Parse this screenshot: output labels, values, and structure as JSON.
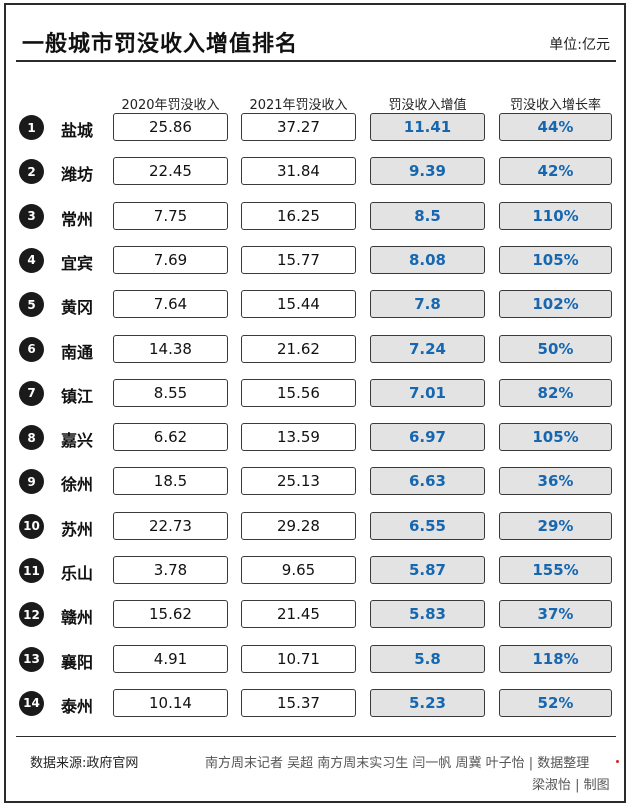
{
  "title": "一般城市罚没收入增值排名",
  "unit": "单位:亿元",
  "chart_data": {
    "type": "table",
    "columns": [
      "2020年罚没收入",
      "2021年罚没收入",
      "罚没收入增值",
      "罚没收入增长率"
    ],
    "rows": [
      {
        "rank": "1",
        "city": "盐城",
        "v2020": "25.86",
        "v2021": "37.27",
        "increase": "11.41",
        "growth": "44%"
      },
      {
        "rank": "2",
        "city": "潍坊",
        "v2020": "22.45",
        "v2021": "31.84",
        "increase": "9.39",
        "growth": "42%"
      },
      {
        "rank": "3",
        "city": "常州",
        "v2020": "7.75",
        "v2021": "16.25",
        "increase": "8.5",
        "growth": "110%"
      },
      {
        "rank": "4",
        "city": "宜宾",
        "v2020": "7.69",
        "v2021": "15.77",
        "increase": "8.08",
        "growth": "105%"
      },
      {
        "rank": "5",
        "city": "黄冈",
        "v2020": "7.64",
        "v2021": "15.44",
        "increase": "7.8",
        "growth": "102%"
      },
      {
        "rank": "6",
        "city": "南通",
        "v2020": "14.38",
        "v2021": "21.62",
        "increase": "7.24",
        "growth": "50%"
      },
      {
        "rank": "7",
        "city": "镇江",
        "v2020": "8.55",
        "v2021": "15.56",
        "increase": "7.01",
        "growth": "82%"
      },
      {
        "rank": "8",
        "city": "嘉兴",
        "v2020": "6.62",
        "v2021": "13.59",
        "increase": "6.97",
        "growth": "105%"
      },
      {
        "rank": "9",
        "city": "徐州",
        "v2020": "18.5",
        "v2021": "25.13",
        "increase": "6.63",
        "growth": "36%"
      },
      {
        "rank": "10",
        "city": "苏州",
        "v2020": "22.73",
        "v2021": "29.28",
        "increase": "6.55",
        "growth": "29%"
      },
      {
        "rank": "11",
        "city": "乐山",
        "v2020": "3.78",
        "v2021": "9.65",
        "increase": "5.87",
        "growth": "155%"
      },
      {
        "rank": "12",
        "city": "赣州",
        "v2020": "15.62",
        "v2021": "21.45",
        "increase": "5.83",
        "growth": "37%"
      },
      {
        "rank": "13",
        "city": "襄阳",
        "v2020": "4.91",
        "v2021": "10.71",
        "increase": "5.8",
        "growth": "118%"
      },
      {
        "rank": "14",
        "city": "泰州",
        "v2020": "10.14",
        "v2021": "15.37",
        "increase": "5.23",
        "growth": "52%"
      }
    ]
  },
  "colors": {
    "highlight_text": "#1667b0",
    "highlight_fill": "#e3e3e3",
    "badge": "#1a1a1a"
  },
  "footer": {
    "source": "数据来源:政府官网",
    "credit_line1": "南方周末记者 吴超 南方周末实习生 闫一帆 周冀 叶子怡 | 数据整理",
    "credit_line2": "梁淑怡 | 制图"
  }
}
